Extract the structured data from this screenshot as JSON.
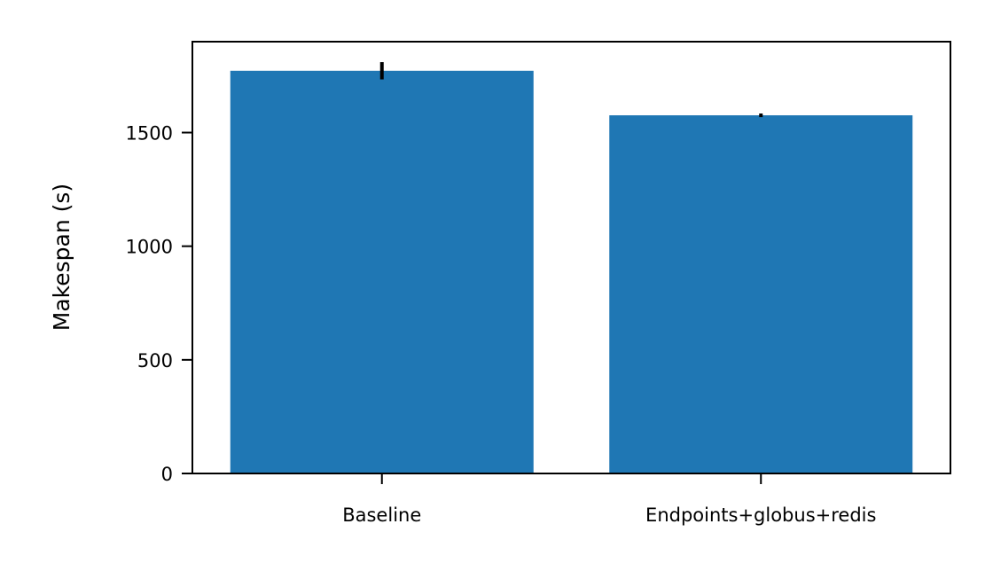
{
  "chart_data": {
    "type": "bar",
    "title": "",
    "xlabel": "",
    "ylabel": "Makespan (s)",
    "categories": [
      "Baseline",
      "Endpoints+globus+redis"
    ],
    "values": [
      1772,
      1576
    ],
    "error": [
      38,
      8
    ],
    "ylim": [
      0,
      1900
    ],
    "yticks": [
      0,
      500,
      1000,
      1500
    ],
    "ytick_labels": [
      "0",
      "500",
      "1000",
      "1500"
    ],
    "grid": false,
    "legend": "none",
    "colors": {
      "bar": "#1f77b4",
      "error_bar": "#000000",
      "axis": "#000000"
    }
  }
}
